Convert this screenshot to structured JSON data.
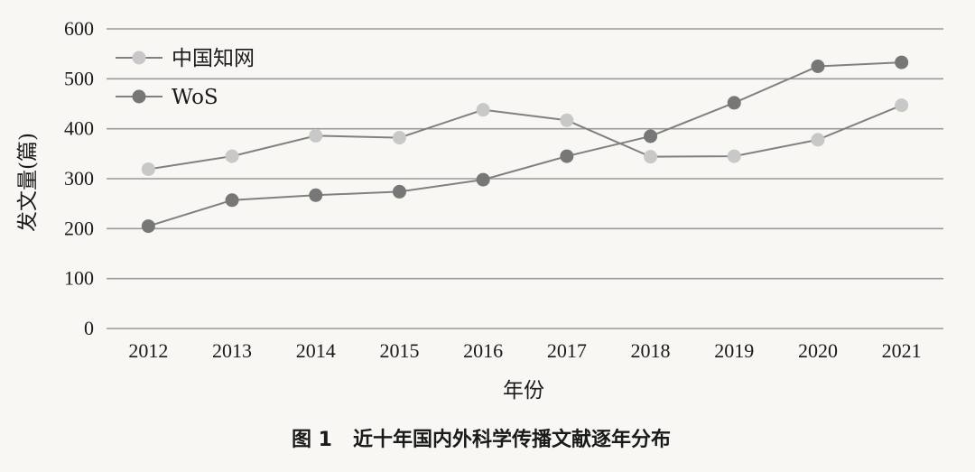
{
  "caption": "图 1   近十年国内外科学传播文献逐年分布",
  "chart_data": {
    "type": "line",
    "title": "",
    "xlabel": "年份",
    "ylabel": "发文量(篇)",
    "categories": [
      "2012",
      "2013",
      "2014",
      "2015",
      "2016",
      "2017",
      "2018",
      "2019",
      "2020",
      "2021"
    ],
    "ylim": [
      0,
      600
    ],
    "yticks": [
      0,
      100,
      200,
      300,
      400,
      500,
      600
    ],
    "grid": true,
    "legend_position": "top-left",
    "series": [
      {
        "name": "中国知网",
        "color": "#c8c8c8",
        "values": [
          319,
          345,
          386,
          382,
          438,
          417,
          344,
          345,
          378,
          447
        ]
      },
      {
        "name": "WoS",
        "color": "#777777",
        "values": [
          205,
          257,
          267,
          274,
          298,
          345,
          385,
          452,
          525,
          533
        ]
      }
    ]
  }
}
